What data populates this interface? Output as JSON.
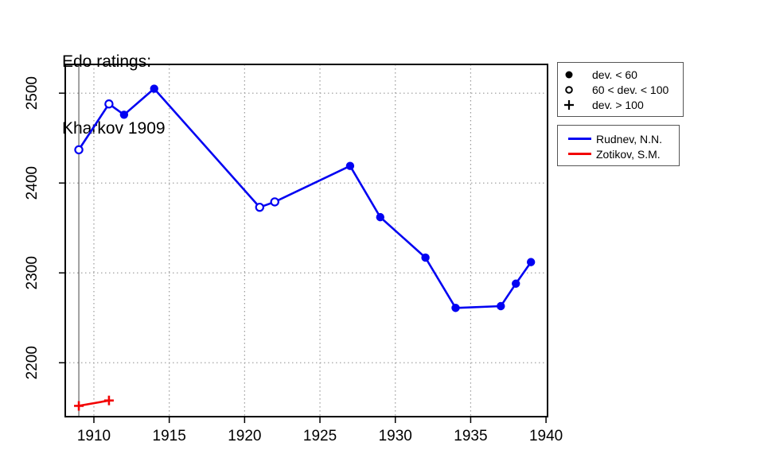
{
  "title": {
    "line1": "Edo ratings:",
    "line2": "Kharkov 1909"
  },
  "colors": {
    "rudnev_blue": "#0202F2",
    "zotikov_red": "#F20202",
    "grid": "#999999",
    "reference_line": "#444444",
    "axis": "#000000",
    "legend_border": "#555555"
  },
  "chart_data": {
    "type": "line",
    "title": "Edo ratings: Kharkov 1909",
    "xlabel": "",
    "ylabel": "",
    "xlim": [
      1908.1,
      1940.1
    ],
    "ylim": [
      2140,
      2532
    ],
    "x_ticks": [
      1910,
      1915,
      1920,
      1925,
      1930,
      1935,
      1940
    ],
    "y_ticks": [
      2200,
      2300,
      2400,
      2500
    ],
    "grid": "dotted",
    "legend_position": "top-right",
    "reference_line_x": 1909,
    "series": [
      {
        "name": "Rudnev, N.N.",
        "color": "#0202F2",
        "points": [
          {
            "x": 1909,
            "y": 2437,
            "marker": "open"
          },
          {
            "x": 1911,
            "y": 2488,
            "marker": "open"
          },
          {
            "x": 1912,
            "y": 2476,
            "marker": "filled"
          },
          {
            "x": 1914,
            "y": 2505,
            "marker": "filled"
          },
          {
            "x": 1921,
            "y": 2373,
            "marker": "open"
          },
          {
            "x": 1922,
            "y": 2379,
            "marker": "open"
          },
          {
            "x": 1927,
            "y": 2419,
            "marker": "filled"
          },
          {
            "x": 1929,
            "y": 2362,
            "marker": "filled"
          },
          {
            "x": 1932,
            "y": 2317,
            "marker": "filled"
          },
          {
            "x": 1934,
            "y": 2261,
            "marker": "filled"
          },
          {
            "x": 1937,
            "y": 2263,
            "marker": "filled"
          },
          {
            "x": 1938,
            "y": 2288,
            "marker": "filled"
          },
          {
            "x": 1939,
            "y": 2312,
            "marker": "filled"
          }
        ]
      },
      {
        "name": "Zotikov, S.M.",
        "color": "#F20202",
        "points": [
          {
            "x": 1909,
            "y": 2152,
            "marker": "plus"
          },
          {
            "x": 1911,
            "y": 2158,
            "marker": "plus"
          }
        ]
      }
    ]
  },
  "marker_legend": {
    "items": [
      {
        "marker": "filled-circle",
        "label": "dev. < 60"
      },
      {
        "marker": "open-circle",
        "label": "60 < dev. < 100"
      },
      {
        "marker": "plus",
        "label": "dev. > 100"
      }
    ]
  },
  "series_legend": {
    "items": [
      {
        "name": "Rudnev, N.N.",
        "color": "#0202F2"
      },
      {
        "name": "Zotikov, S.M.",
        "color": "#F20202"
      }
    ]
  }
}
